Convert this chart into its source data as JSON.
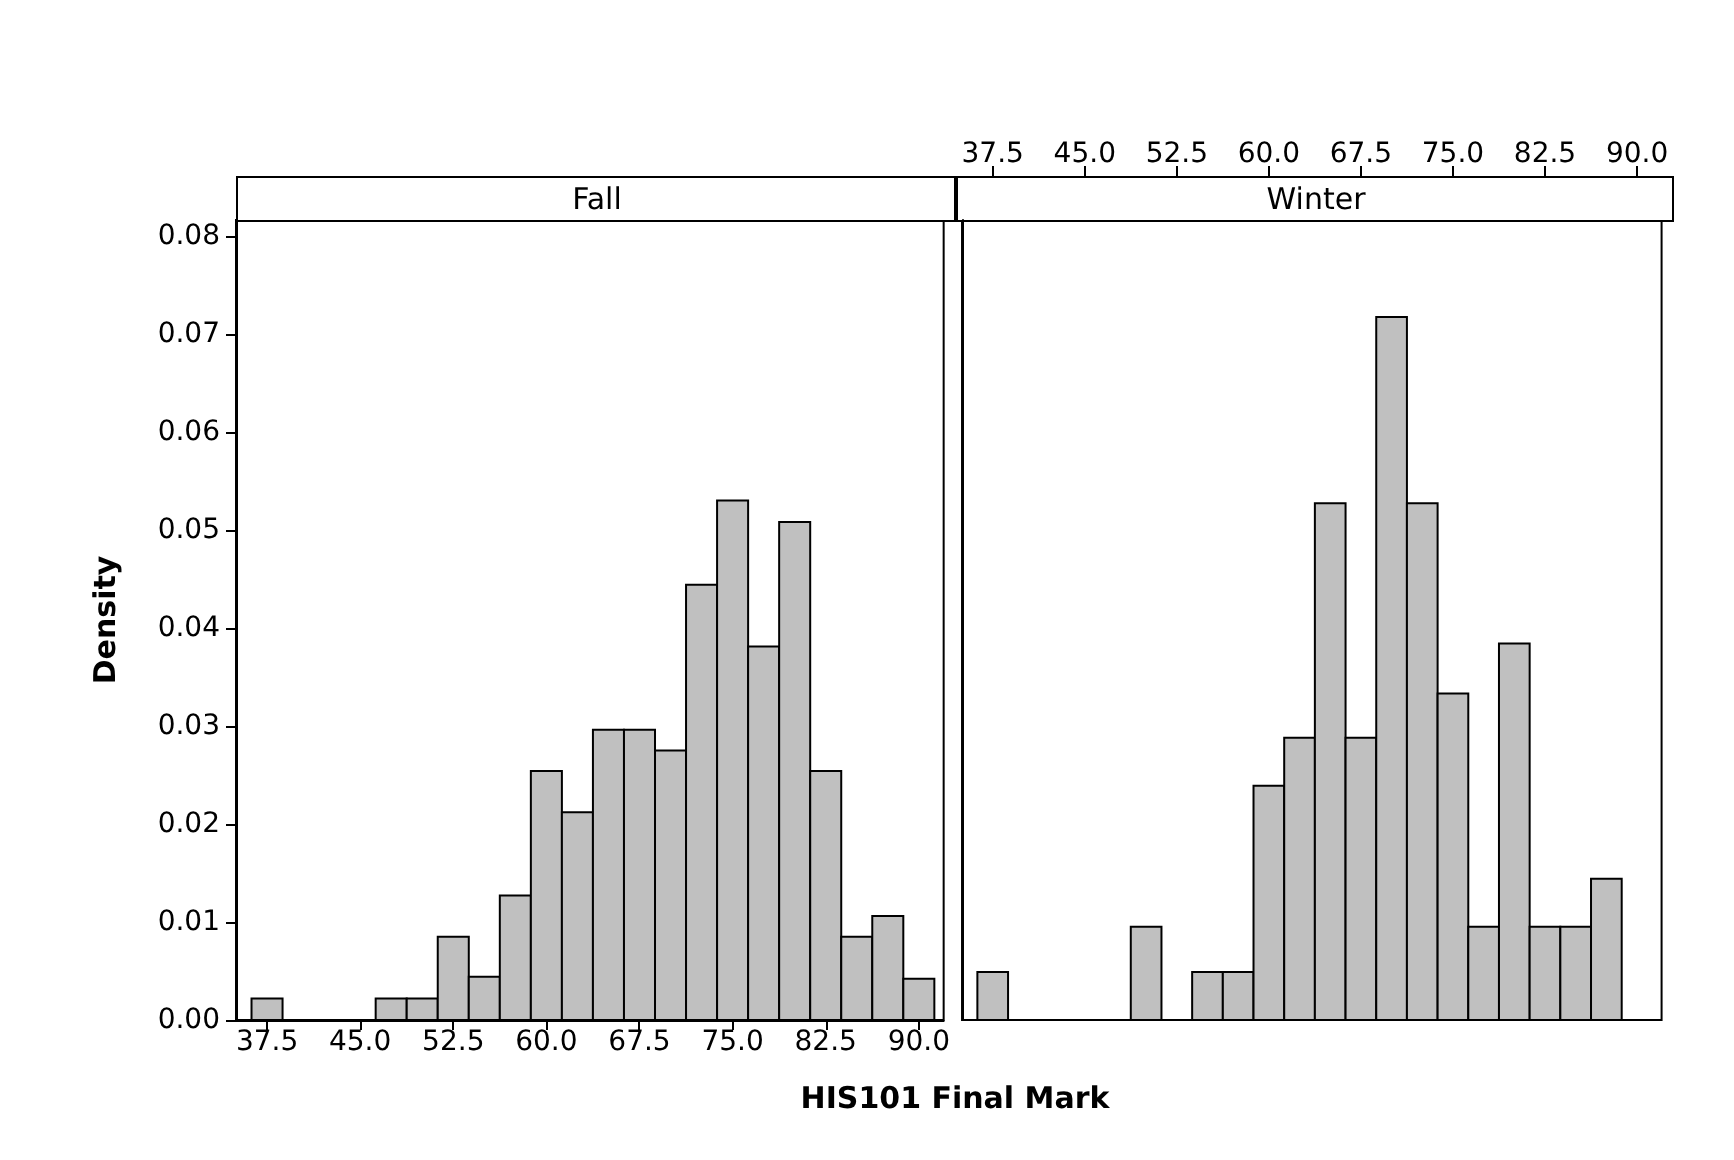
{
  "chart_data": [
    {
      "type": "histogram",
      "title": "Fall",
      "ylabel": "Density",
      "xlabel": "HIS101 Final Mark",
      "color": "#c0c0c0",
      "bins": [
        36.25,
        38.75,
        41.25,
        43.75,
        46.25,
        48.75,
        51.25,
        53.75,
        56.25,
        58.75,
        61.25,
        63.75,
        66.25,
        68.75,
        71.25,
        73.75,
        76.25,
        78.75,
        81.25,
        83.75,
        86.25,
        88.75,
        91.25
      ],
      "values": [
        0.0022,
        0,
        0,
        0,
        0.0022,
        0.0022,
        0.0085,
        0.0044,
        0.0127,
        0.0254,
        0.0212,
        0.0296,
        0.0296,
        0.0275,
        0.0444,
        0.053,
        0.0381,
        0.0508,
        0.0254,
        0.0085,
        0.0106,
        0.0042
      ],
      "xlim": [
        35,
        92
      ],
      "xticks": [
        37.5,
        {
          "value": 45,
          "label": "45.0"
        },
        52.5,
        {
          "value": 60,
          "label": "60.0"
        },
        67.5,
        {
          "value": 75,
          "label": "75.0"
        },
        82.5,
        {
          "value": 90,
          "label": "90.0"
        }
      ],
      "ylim": [
        0,
        0.0816
      ],
      "yticks": [
        {
          "value": 0,
          "label": "0.00"
        },
        0.01,
        0.02,
        0.03,
        0.04,
        0.05,
        0.06,
        0.07,
        0.08
      ]
    },
    {
      "type": "histogram",
      "title": "Winter",
      "color": "#c0c0c0",
      "tick_labels": "x",
      "bins": [
        36.25,
        38.75,
        41.25,
        43.75,
        46.25,
        48.75,
        51.25,
        53.75,
        56.25,
        58.75,
        61.25,
        63.75,
        66.25,
        68.75,
        71.25,
        73.75,
        76.25,
        78.75,
        81.25,
        83.75,
        86.25,
        88.75
      ],
      "values": [
        0.0049,
        0,
        0,
        0,
        0,
        0.0095,
        0,
        0.0049,
        0.0049,
        0.0239,
        0.0288,
        0.0527,
        0.0288,
        0.0717,
        0.0527,
        0.0333,
        0.0095,
        0.0384,
        0.0095,
        0.0095,
        0.0144
      ],
      "xlim": [
        35,
        92
      ],
      "xticks": [
        37.5,
        {
          "value": 45,
          "label": "45.0"
        },
        52.5,
        {
          "value": 60,
          "label": "60.0"
        },
        67.5,
        {
          "value": 75,
          "label": "75.0"
        },
        82.5,
        {
          "value": 90,
          "label": "90.0"
        }
      ],
      "ylim": [
        0,
        0.0816
      ]
    }
  ]
}
